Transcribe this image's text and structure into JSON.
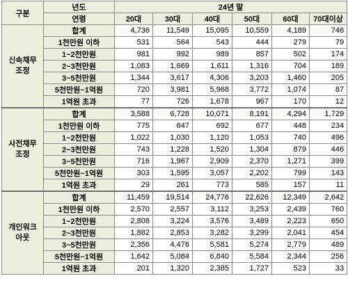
{
  "header": {
    "category_label": "구분",
    "year_label": "년도",
    "period_label": "24년 말",
    "age_label": "연령",
    "age_groups": [
      "20대",
      "30대",
      "40대",
      "50대",
      "60대",
      "70대이상"
    ]
  },
  "groups": [
    {
      "name_line1": "신속채무",
      "name_line2": "조정",
      "rows": [
        {
          "label": "합계",
          "values": [
            "4,736",
            "11,549",
            "15,095",
            "10,559",
            "4,189",
            "746"
          ]
        },
        {
          "label": "1천만원 이하",
          "values": [
            "531",
            "564",
            "543",
            "444",
            "279",
            "79"
          ]
        },
        {
          "label": "1~2천만원",
          "values": [
            "981",
            "992",
            "989",
            "857",
            "502",
            "174"
          ]
        },
        {
          "label": "2~3천만원",
          "values": [
            "1,083",
            "1,669",
            "1,611",
            "1,316",
            "704",
            "189"
          ]
        },
        {
          "label": "3~5천만원",
          "values": [
            "1,344",
            "3,617",
            "4,306",
            "3,203",
            "1,460",
            "205"
          ]
        },
        {
          "label": "5천만원~1억원",
          "values": [
            "720",
            "3,981",
            "5,968",
            "3,772",
            "1,074",
            "87"
          ]
        },
        {
          "label": "1억원 초과",
          "values": [
            "77",
            "726",
            "1,678",
            "967",
            "170",
            "12"
          ]
        }
      ]
    },
    {
      "name_line1": "사전채무",
      "name_line2": "조정",
      "rows": [
        {
          "label": "합계",
          "values": [
            "3,588",
            "6,728",
            "10,071",
            "8,191",
            "4,294",
            "1,729"
          ]
        },
        {
          "label": "1천만원 이하",
          "values": [
            "775",
            "647",
            "692",
            "677",
            "448",
            "234"
          ]
        },
        {
          "label": "1~2천만원",
          "values": [
            "1,022",
            "1,030",
            "1,120",
            "1,053",
            "740",
            "496"
          ]
        },
        {
          "label": "2~3천만원",
          "values": [
            "743",
            "1,228",
            "1,520",
            "1,304",
            "879",
            "446"
          ]
        },
        {
          "label": "3~5천만원",
          "values": [
            "716",
            "1,967",
            "2,909",
            "2,370",
            "1,271",
            "399"
          ]
        },
        {
          "label": "5천만원~1억원",
          "values": [
            "303",
            "1,595",
            "3,057",
            "2,202",
            "799",
            "143"
          ]
        },
        {
          "label": "1억원 초과",
          "values": [
            "29",
            "261",
            "773",
            "585",
            "157",
            "11"
          ]
        }
      ]
    },
    {
      "name_line1": "개인워크",
      "name_line2": "아웃",
      "rows": [
        {
          "label": "합계",
          "values": [
            "11,459",
            "19,514",
            "24,776",
            "22,626",
            "12,349",
            "2,642"
          ]
        },
        {
          "label": "1천만원 이하",
          "values": [
            "2,570",
            "2,557",
            "3,112",
            "3,253",
            "2,439",
            "760"
          ]
        },
        {
          "label": "1~2천만원",
          "values": [
            "2,808",
            "3,224",
            "3,576",
            "3,489",
            "2,223",
            "650"
          ]
        },
        {
          "label": "2~3천만원",
          "values": [
            "1,882",
            "2,853",
            "3,282",
            "3,299",
            "2,041",
            "454"
          ]
        },
        {
          "label": "3~5천만원",
          "values": [
            "2,356",
            "4,476",
            "5,581",
            "5,274",
            "2,779",
            "489"
          ]
        },
        {
          "label": "5천만원~1억원",
          "values": [
            "1,642",
            "5,084",
            "6,840",
            "5,584",
            "2,344",
            "256"
          ]
        },
        {
          "label": "1억원 초과",
          "values": [
            "201",
            "1,320",
            "2,385",
            "1,727",
            "523",
            "33"
          ]
        }
      ]
    }
  ]
}
